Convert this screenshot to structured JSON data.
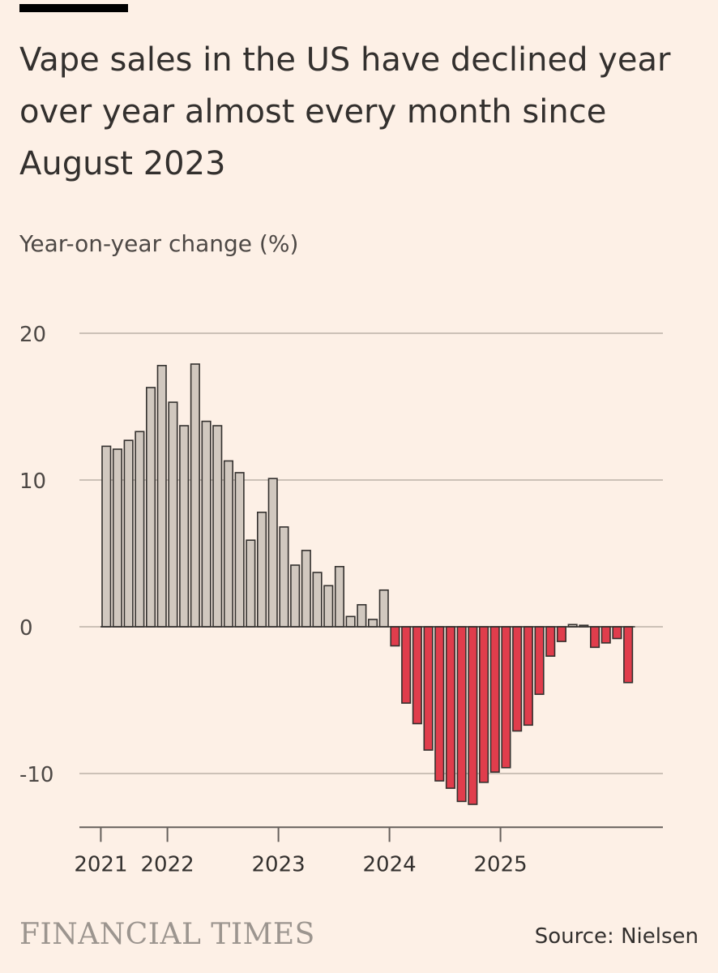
{
  "header": {
    "title": "Vape sales in the US have declined year over year almost every month since August 2023",
    "subtitle": "Year-on-year change (%)"
  },
  "footer": {
    "logo_text": "FINANCIAL TIMES",
    "source": "Source: Nielsen"
  },
  "colors": {
    "background": "#fdf0e6",
    "positive_bar": "#d1c8bf",
    "negative_bar": "#e03d4c",
    "bar_stroke": "#33302e",
    "gridline": "#ccc1b7"
  },
  "chart_data": {
    "type": "bar",
    "title": "Vape sales in the US have declined year over year almost every month since August 2023",
    "ylabel": "Year-on-year change (%)",
    "xlabel": "",
    "ylim": [
      -13,
      20
    ],
    "yticks": [
      20,
      10,
      0,
      -10
    ],
    "ytick_labels": [
      "20",
      "10",
      "0",
      "-10"
    ],
    "xtick_labels": [
      "2021",
      "2022",
      "2023",
      "2024",
      "2025"
    ],
    "xtick_positions": [
      0,
      6,
      16,
      26,
      36
    ],
    "grid": true,
    "series": [
      {
        "name": "Year-on-year change (%)",
        "values": [
          12.3,
          12.1,
          12.7,
          13.3,
          16.3,
          17.8,
          15.3,
          13.7,
          17.9,
          14.0,
          13.7,
          11.3,
          10.5,
          5.9,
          7.8,
          10.1,
          6.8,
          4.2,
          5.2,
          3.7,
          2.8,
          4.1,
          0.7,
          1.5,
          0.5,
          2.5,
          -1.3,
          -5.2,
          -6.6,
          -8.4,
          -10.5,
          -11.0,
          -11.9,
          -12.1,
          -10.6,
          -9.9,
          -9.6,
          -7.1,
          -6.7,
          -4.6,
          -2.0,
          -1.0,
          0.15,
          0.1,
          -1.4,
          -1.1,
          -0.8,
          -3.8
        ]
      }
    ]
  }
}
